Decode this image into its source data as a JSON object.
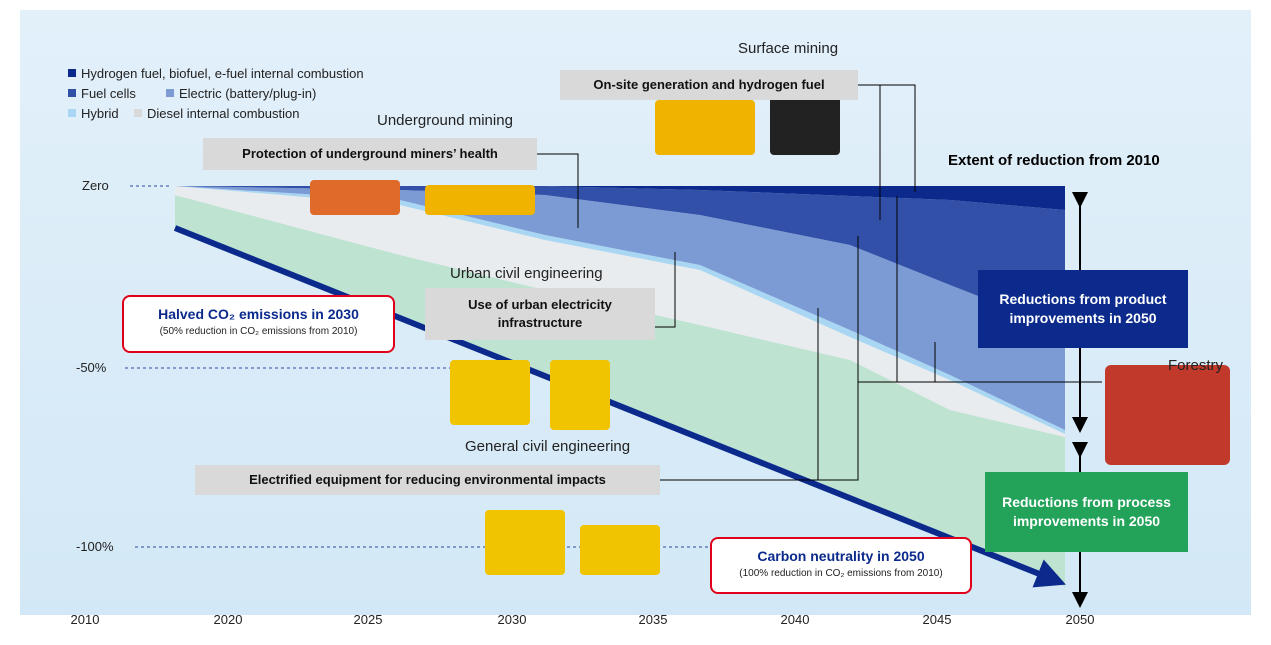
{
  "legend": [
    "Hydrogen fuel, biofuel, e-fuel internal combustion",
    "Fuel cells",
    "Electric (battery/plug-in)",
    "Hybrid",
    "Diesel internal combustion"
  ],
  "y_axis": [
    "Zero",
    "-50%",
    "-100%"
  ],
  "x_axis": [
    2010,
    2020,
    2025,
    2030,
    2035,
    2040,
    2045,
    2050
  ],
  "sectors": {
    "surface_mining": "Surface mining",
    "underground_mining": "Underground mining",
    "urban_civil": "Urban civil engineering",
    "forestry": "Forestry",
    "general_civil": "General civil engineering"
  },
  "callouts": {
    "surface": "On-site generation and hydrogen fuel",
    "underground": "Protection of underground miners’ health",
    "urban": "Use of urban electricity infrastructure",
    "general": "Electrified equipment for reducing environmental impacts"
  },
  "extent_title": "Extent of reduction from 2010",
  "product": "Reductions from product improvements in 2050",
  "process": "Reductions from process improvements in 2050",
  "halved": {
    "title": "Halved CO₂ emissions in 2030",
    "note": "(50% reduction in CO₂ emissions from 2010)"
  },
  "neutral": {
    "title": "Carbon neutrality in 2050",
    "note": "(100% reduction in CO₂ emissions from 2010)"
  }
}
